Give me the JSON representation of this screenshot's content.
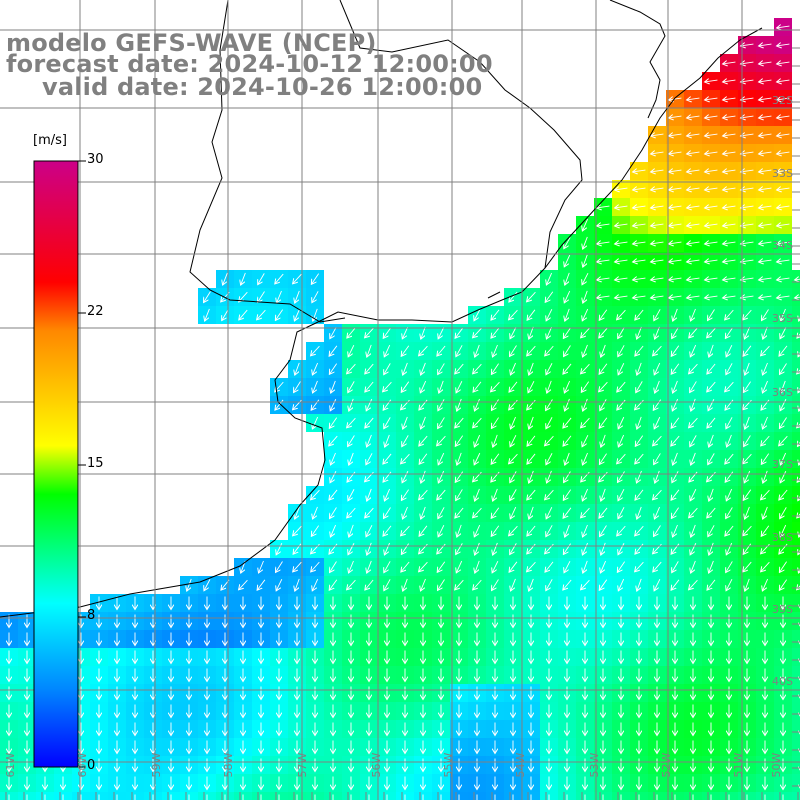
{
  "title": {
    "model": "modelo GEFS-WAVE (NCEP)",
    "forecast": "forecast date: 2024-10-12 12:00:00",
    "valid": "valid date: 2024-10-26 12:00:00"
  },
  "colorbar": {
    "unit": "[m/s]",
    "ticks": [
      "30",
      "22",
      "15",
      "8",
      "0"
    ],
    "range": [
      0,
      30
    ],
    "colors": [
      "#0000ff",
      "#0088ff",
      "#00ffff",
      "#00ff00",
      "#ffff00",
      "#ff8800",
      "#ff0000",
      "#cc0088"
    ]
  },
  "map": {
    "lat_labels": [
      "32S",
      "33S",
      "34S",
      "35S",
      "36S",
      "37S",
      "38S",
      "39S",
      "40S"
    ],
    "lon_labels": [
      "61W",
      "60W",
      "59W",
      "58W",
      "57W",
      "56W",
      "55W",
      "54W",
      "53W",
      "52W",
      "51W",
      "50W"
    ],
    "land_color": "#ffffff",
    "grid_color": "#808080",
    "arrow_color": "#ffffff"
  }
}
